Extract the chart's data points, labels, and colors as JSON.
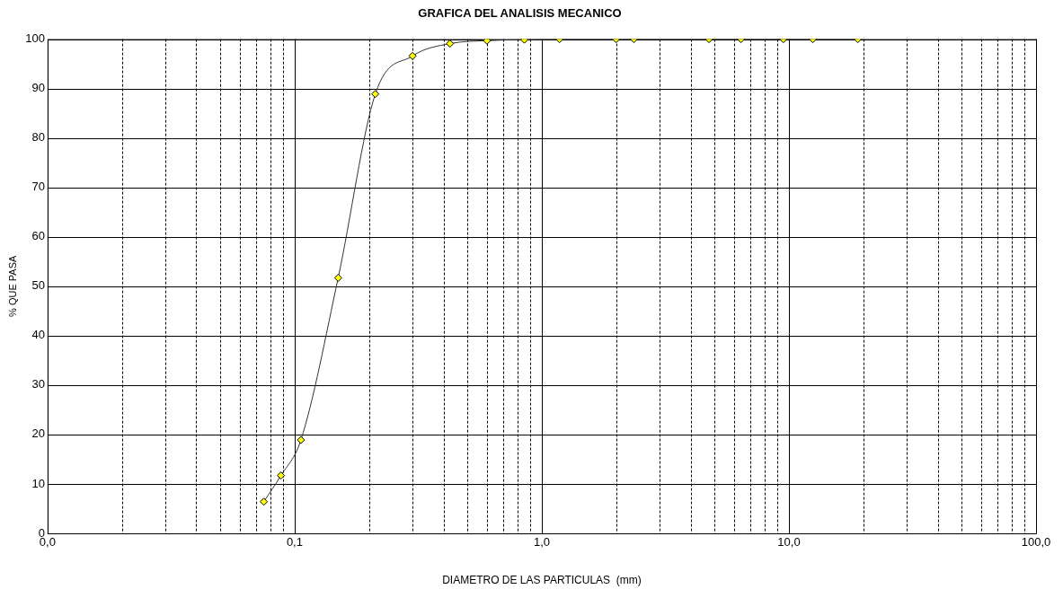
{
  "chart_data": {
    "type": "line",
    "title": "GRAFICA DEL ANALISIS MECANICO",
    "xlabel": "DIAMETRO DE LAS PARTICULAS  (mm)",
    "ylabel": "% QUE PASA",
    "log": "x",
    "grid": true,
    "marker": "diamond",
    "line_style": "solid",
    "legend": false,
    "xlim": [
      0.01,
      100
    ],
    "xticks": [
      {
        "value": 0.01,
        "label": "0,0"
      },
      {
        "value": 0.02,
        "label": null
      },
      {
        "value": 0.03,
        "label": null
      },
      {
        "value": 0.04,
        "label": null
      },
      {
        "value": 0.05,
        "label": null
      },
      {
        "value": 0.06,
        "label": null
      },
      {
        "value": 0.07,
        "label": null
      },
      {
        "value": 0.08,
        "label": null
      },
      {
        "value": 0.09,
        "label": null
      },
      {
        "value": 0.1,
        "label": "0,1"
      },
      {
        "value": 0.2,
        "label": null
      },
      {
        "value": 0.3,
        "label": null
      },
      {
        "value": 0.4,
        "label": null
      },
      {
        "value": 0.5,
        "label": null
      },
      {
        "value": 0.6,
        "label": null
      },
      {
        "value": 0.7,
        "label": null
      },
      {
        "value": 0.8,
        "label": null
      },
      {
        "value": 0.9,
        "label": null
      },
      {
        "value": 1,
        "label": "1,0"
      },
      {
        "value": 2,
        "label": null
      },
      {
        "value": 3,
        "label": null
      },
      {
        "value": 4,
        "label": null
      },
      {
        "value": 5,
        "label": null
      },
      {
        "value": 6,
        "label": null
      },
      {
        "value": 7,
        "label": null
      },
      {
        "value": 8,
        "label": null
      },
      {
        "value": 9,
        "label": null
      },
      {
        "value": 10,
        "label": "10,0"
      },
      {
        "value": 20,
        "label": null
      },
      {
        "value": 30,
        "label": null
      },
      {
        "value": 40,
        "label": null
      },
      {
        "value": 50,
        "label": null
      },
      {
        "value": 60,
        "label": null
      },
      {
        "value": 70,
        "label": null
      },
      {
        "value": 80,
        "label": null
      },
      {
        "value": 90,
        "label": null
      },
      {
        "value": 100,
        "label": "100,0"
      }
    ],
    "ylim": [
      0,
      100
    ],
    "yticks": [
      0,
      10,
      20,
      30,
      40,
      50,
      60,
      70,
      80,
      90,
      100
    ],
    "x": [
      0.075,
      0.088,
      0.106,
      0.15,
      0.212,
      0.3,
      0.425,
      0.6,
      0.85,
      1.18,
      2.0,
      2.36,
      4.75,
      6.4,
      9.5,
      12.5,
      19
    ],
    "series": [
      {
        "color": "#ffff00",
        "values": [
          6.4,
          11.7,
          18.9,
          51.7,
          88.9,
          96.6,
          99.1,
          99.7,
          99.9,
          100,
          100,
          100,
          100,
          100,
          100,
          100,
          100
        ]
      }
    ]
  }
}
